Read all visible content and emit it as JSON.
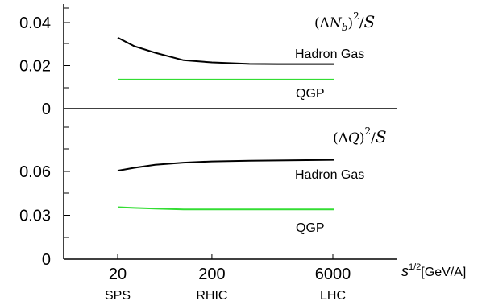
{
  "chart_data": [
    {
      "type": "line",
      "panel": "upper",
      "annotation": {
        "pre": "(Δ",
        "var": "N",
        "sub": "b",
        "post": ")",
        "sup": "2",
        "div": "/",
        "den": "S"
      },
      "yticks": [
        "0.04",
        "0.02",
        "0"
      ],
      "ylim": [
        0,
        0.047
      ],
      "x": [
        20,
        30,
        50,
        100,
        200,
        500,
        1000,
        2000,
        4000
      ],
      "series": [
        {
          "name": "Hadron Gas",
          "color": "#000000",
          "values": [
            0.033,
            0.029,
            0.026,
            0.0225,
            0.0215,
            0.0208,
            0.0207,
            0.0207,
            0.0207
          ]
        },
        {
          "name": "QGP",
          "color": "#33dd33",
          "values": [
            0.0135,
            0.0135,
            0.0135,
            0.0135,
            0.0135,
            0.0135,
            0.0135,
            0.0135,
            0.0135
          ]
        }
      ]
    },
    {
      "type": "line",
      "panel": "lower",
      "annotation": {
        "pre": "(Δ",
        "var": "Q",
        "sub": "",
        "post": ")",
        "sup": "2",
        "div": "/",
        "den": "S"
      },
      "yticks": [
        "0.06",
        "0.03",
        "0"
      ],
      "ylim": [
        0,
        0.1
      ],
      "x": [
        20,
        30,
        50,
        100,
        200,
        500,
        1000,
        2000,
        4000
      ],
      "series": [
        {
          "name": "Hadron Gas",
          "color": "#000000",
          "values": [
            0.0605,
            0.0625,
            0.0645,
            0.066,
            0.0668,
            0.0673,
            0.0675,
            0.0677,
            0.0679
          ]
        },
        {
          "name": "QGP",
          "color": "#33dd33",
          "values": [
            0.0355,
            0.035,
            0.0345,
            0.034,
            0.034,
            0.034,
            0.034,
            0.034,
            0.034
          ]
        }
      ]
    }
  ],
  "xaxis": {
    "ticks": [
      {
        "value": 20,
        "label": "20",
        "collider": "SPS"
      },
      {
        "value": 200,
        "label": "200",
        "collider": "RHIC"
      },
      {
        "value": 6000,
        "label": "6000",
        "collider": "LHC"
      }
    ],
    "label_var": "s",
    "label_sup": "1/2",
    "label_unit": "[GeV/A]"
  }
}
